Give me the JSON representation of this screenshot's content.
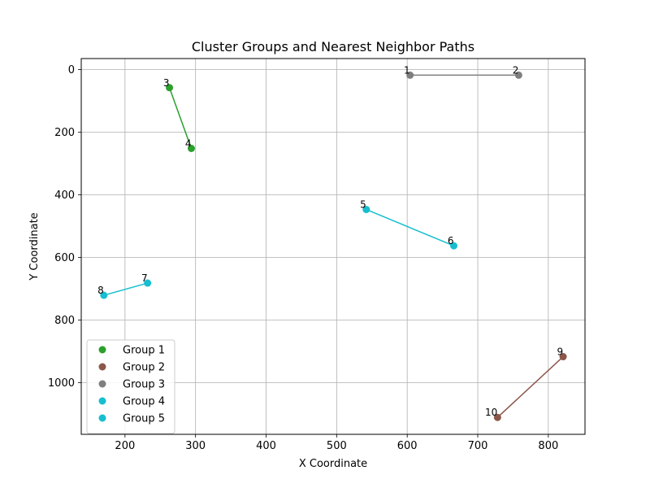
{
  "chart_data": {
    "type": "scatter",
    "title": "Cluster Groups and Nearest Neighbor Paths",
    "xlabel": "X Coordinate",
    "ylabel": "Y Coordinate",
    "xlim": [
      138,
      852
    ],
    "ylim": [
      1165,
      -35
    ],
    "y_inverted": true,
    "grid": true,
    "legend_position": "lower-left",
    "x_ticks": [
      200,
      300,
      400,
      500,
      600,
      700,
      800
    ],
    "y_ticks": [
      0,
      200,
      400,
      600,
      800,
      1000
    ],
    "series": [
      {
        "name": "Group 1",
        "color": "#2ca02c",
        "points": [
          {
            "label": "3",
            "x": 263,
            "y": 58
          },
          {
            "label": "4",
            "x": 294,
            "y": 252
          }
        ]
      },
      {
        "name": "Group 2",
        "color": "#8c564b",
        "points": [
          {
            "label": "9",
            "x": 821,
            "y": 917
          },
          {
            "label": "10",
            "x": 728,
            "y": 1111
          }
        ]
      },
      {
        "name": "Group 3",
        "color": "#7f7f7f",
        "points": [
          {
            "label": "1",
            "x": 604,
            "y": 18
          },
          {
            "label": "2",
            "x": 758,
            "y": 18
          }
        ]
      },
      {
        "name": "Group 4",
        "color": "#17becf",
        "points": [
          {
            "label": "5",
            "x": 542,
            "y": 447
          },
          {
            "label": "6",
            "x": 666,
            "y": 563
          }
        ]
      },
      {
        "name": "Group 5",
        "color": "#17becf",
        "points": [
          {
            "label": "7",
            "x": 232,
            "y": 682
          },
          {
            "label": "8",
            "x": 170,
            "y": 721
          }
        ]
      }
    ]
  }
}
